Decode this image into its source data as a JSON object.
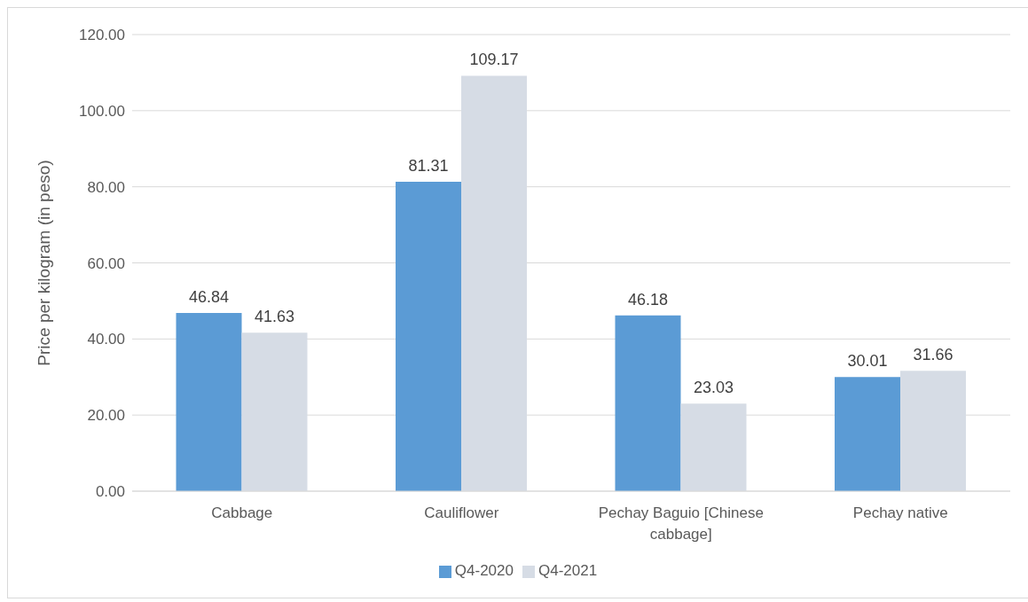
{
  "chart_data": {
    "type": "bar",
    "ylabel": "Price per kilogram (in peso)",
    "categories": [
      "Cabbage",
      "Cauliflower",
      "Pechay Baguio [Chinese cabbage]",
      "Pechay native"
    ],
    "series": [
      {
        "name": "Q4-2020",
        "color": "#5b9bd5",
        "values": [
          46.84,
          81.31,
          46.18,
          30.01
        ]
      },
      {
        "name": "Q4-2021",
        "color": "#d6dce5",
        "values": [
          41.63,
          109.17,
          23.03,
          31.66
        ]
      }
    ],
    "ylim": [
      0,
      120
    ],
    "yticks": [
      {
        "value": 0,
        "label": "0.00"
      },
      {
        "value": 20,
        "label": "20.00"
      },
      {
        "value": 40,
        "label": "40.00"
      },
      {
        "value": 60,
        "label": "60.00"
      },
      {
        "value": 80,
        "label": "80.00"
      },
      {
        "value": 100,
        "label": "100.00"
      },
      {
        "value": 120,
        "label": "120.00"
      }
    ],
    "grid": "y",
    "legend": "bottom",
    "data_labels": true
  }
}
